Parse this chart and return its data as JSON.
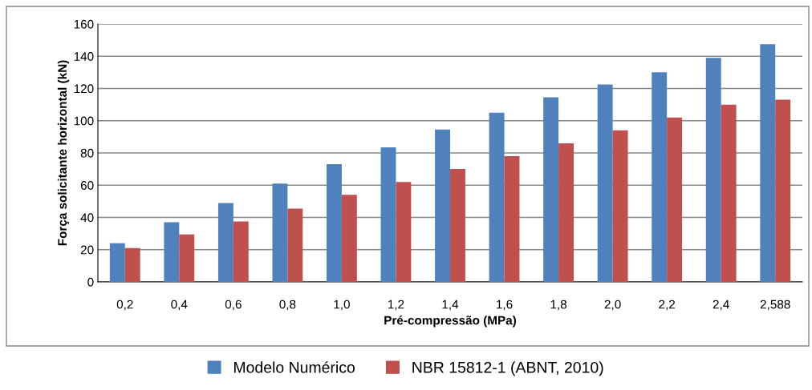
{
  "chart_data": {
    "type": "bar",
    "xlabel": "Pré-compressão (MPa)",
    "ylabel": "Força solicitante horizontal (kN)",
    "categories": [
      "0,2",
      "0,4",
      "0,6",
      "0,8",
      "1,0",
      "1,2",
      "1,4",
      "1,6",
      "1,8",
      "2,0",
      "2,2",
      "2,4",
      "2,588"
    ],
    "series": [
      {
        "name": "Modelo Numérico",
        "color": "#4f81bd",
        "values": [
          24,
          37,
          49,
          61,
          73,
          83.5,
          94.5,
          105,
          114.5,
          122.5,
          130,
          139,
          147.5
        ]
      },
      {
        "name": "NBR 15812-1 (ABNT, 2010)",
        "color": "#c0504d",
        "values": [
          21,
          29.5,
          37.5,
          45.5,
          54,
          62,
          70,
          78,
          86,
          94,
          102,
          110,
          113
        ]
      }
    ],
    "ylim": [
      0,
      160
    ],
    "yticks": [
      0,
      20,
      40,
      60,
      80,
      100,
      120,
      140,
      160
    ],
    "grid": "y",
    "legend": "bottom"
  }
}
